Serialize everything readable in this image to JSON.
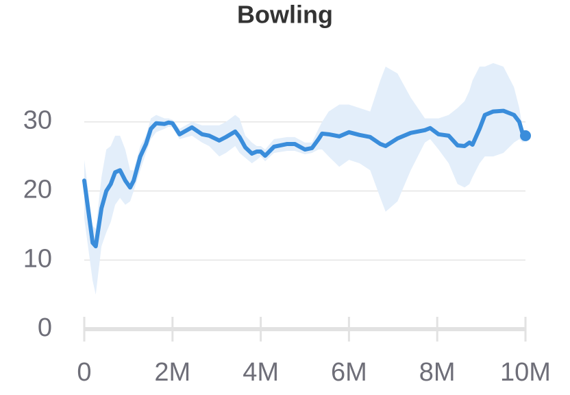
{
  "chart_data": {
    "type": "line",
    "title": "Bowling",
    "x": [
      0,
      190000,
      260000,
      390000,
      500000,
      600000,
      700000,
      810000,
      930000,
      1040000,
      1120000,
      1270000,
      1400000,
      1510000,
      1630000,
      1820000,
      1910000,
      2000000,
      2160000,
      2440000,
      2670000,
      2830000,
      3060000,
      3210000,
      3420000,
      3520000,
      3650000,
      3800000,
      3910000,
      4000000,
      4100000,
      4300000,
      4600000,
      4770000,
      5000000,
      5160000,
      5310000,
      5390000,
      5540000,
      5780000,
      6000000,
      6240000,
      6480000,
      6710000,
      6830000,
      7100000,
      7400000,
      7720000,
      7840000,
      8030000,
      8260000,
      8460000,
      8620000,
      8730000,
      8800000,
      8960000,
      9080000,
      9270000,
      9500000,
      9740000,
      9860000,
      9940000,
      10000000
    ],
    "series": [
      {
        "color": "#3a8ddb",
        "band_color": "#e3eefa",
        "values": [
          21.5,
          12.5,
          12,
          17.5,
          20,
          21,
          22.7,
          23,
          21.5,
          20.5,
          21.5,
          25,
          26.8,
          29,
          29.8,
          29.7,
          29.9,
          29.8,
          28.2,
          29.2,
          28.2,
          28,
          27.3,
          27.8,
          28.6,
          27.8,
          26.3,
          25.4,
          25.7,
          25.7,
          25.1,
          26.4,
          26.8,
          26.8,
          26,
          26.2,
          27.5,
          28.3,
          28.2,
          27.9,
          28.5,
          28.1,
          27.8,
          26.8,
          26.5,
          27.6,
          28.4,
          28.8,
          29.1,
          28.2,
          28,
          26.6,
          26.5,
          27,
          26.7,
          29,
          31,
          31.5,
          31.6,
          31,
          30,
          28.2,
          28
        ],
        "upper": [
          24.5,
          15,
          14.5,
          22,
          26,
          26.5,
          28,
          28,
          26,
          23,
          23,
          26.5,
          28,
          30.5,
          31,
          30.5,
          30.5,
          30.3,
          29,
          30,
          29.5,
          29.5,
          29.5,
          30,
          31,
          30.5,
          28,
          27,
          26.5,
          26.5,
          26,
          27.5,
          27.8,
          27.8,
          27,
          27,
          29,
          30,
          31.5,
          32.5,
          32.5,
          32,
          31.5,
          36,
          38,
          37,
          33.5,
          30.5,
          30.5,
          30.5,
          31,
          32,
          33,
          34.5,
          36,
          38,
          38,
          38.5,
          38,
          35,
          32,
          29,
          28.5
        ],
        "lower": [
          16,
          7,
          5,
          12,
          14,
          15.5,
          18,
          19,
          18,
          18.5,
          20,
          23,
          25.5,
          27.5,
          28.5,
          29,
          29.3,
          29.2,
          27.5,
          28,
          27,
          26.5,
          25,
          25.5,
          26.5,
          25.5,
          24.8,
          24,
          24.5,
          25,
          24.3,
          25.5,
          25.8,
          25.8,
          25.3,
          25.5,
          26,
          26,
          25,
          23.5,
          24.5,
          24,
          23,
          19,
          17,
          18.5,
          23,
          27,
          27.5,
          26,
          24,
          21,
          20.5,
          21,
          22,
          24,
          25,
          25,
          25.5,
          27,
          27.5,
          27,
          27.3
        ]
      }
    ],
    "xlim": [
      0,
      10000000
    ],
    "xticks": [
      0,
      {
        "value": 2000000,
        "label": "2M"
      },
      {
        "value": 4000000,
        "label": "4M"
      },
      {
        "value": 6000000,
        "label": "6M"
      },
      {
        "value": 8000000,
        "label": "8M"
      },
      {
        "value": 10000000,
        "label": "10M"
      }
    ],
    "ylim": [
      0,
      39
    ],
    "yticks": [
      0,
      10,
      20,
      30
    ],
    "grid": true
  }
}
